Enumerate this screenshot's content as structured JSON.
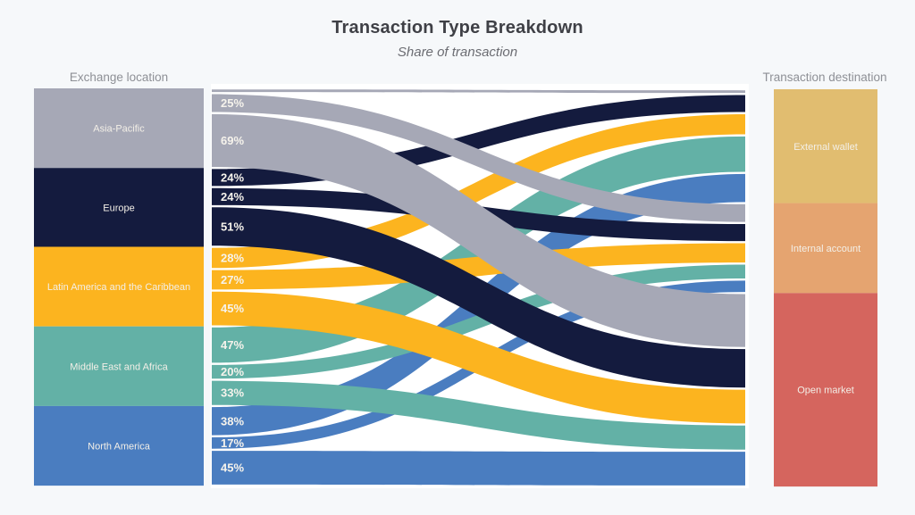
{
  "page": {
    "title": "Transaction Type Breakdown",
    "subtitle": "Share of transaction",
    "left_column_header": "Exchange location",
    "right_column_header": "Transaction destination"
  },
  "colors": {
    "background": "#f6f8fa",
    "plot_background": "#ffffff",
    "title_text": "#3f4046",
    "subtitle_text": "#6b6c72",
    "column_header_text": "#8e9096",
    "node_label_text": "#f3efe7",
    "flow_label_text": "#f6f3ec"
  },
  "chart_data": {
    "type": "sankey",
    "title": "Transaction Type Breakdown",
    "subtitle": "Share of transaction",
    "left_header": "Exchange location",
    "right_header": "Transaction destination",
    "legend_position": "none",
    "value_format": "percent",
    "sources": [
      {
        "name": "Asia-Pacific",
        "color": "#a6a8b6"
      },
      {
        "name": "Europe",
        "color": "#141b3e"
      },
      {
        "name": "Latin America and the Caribbean",
        "color": "#fcb41f"
      },
      {
        "name": "Middle East and Africa",
        "color": "#63b1a6"
      },
      {
        "name": "North America",
        "color": "#4a7dc0"
      }
    ],
    "destinations": [
      {
        "name": "External wallet",
        "color": "#e1bd70"
      },
      {
        "name": "Internal account",
        "color": "#e5a470"
      },
      {
        "name": "Open market",
        "color": "#d5655e"
      }
    ],
    "links": [
      {
        "source": "Asia-Pacific",
        "destination": "External wallet",
        "value": 6,
        "label": ""
      },
      {
        "source": "Asia-Pacific",
        "destination": "Internal account",
        "value": 25,
        "label": "25%"
      },
      {
        "source": "Asia-Pacific",
        "destination": "Open market",
        "value": 69,
        "label": "69%"
      },
      {
        "source": "Europe",
        "destination": "External wallet",
        "value": 24,
        "label": "24%"
      },
      {
        "source": "Europe",
        "destination": "Internal account",
        "value": 24,
        "label": "24%"
      },
      {
        "source": "Europe",
        "destination": "Open market",
        "value": 51,
        "label": "51%"
      },
      {
        "source": "Latin America and the Caribbean",
        "destination": "External wallet",
        "value": 28,
        "label": "28%"
      },
      {
        "source": "Latin America and the Caribbean",
        "destination": "Internal account",
        "value": 27,
        "label": "27%"
      },
      {
        "source": "Latin America and the Caribbean",
        "destination": "Open market",
        "value": 45,
        "label": "45%"
      },
      {
        "source": "Middle East and Africa",
        "destination": "External wallet",
        "value": 47,
        "label": "47%"
      },
      {
        "source": "Middle East and Africa",
        "destination": "Internal account",
        "value": 20,
        "label": "20%"
      },
      {
        "source": "Middle East and Africa",
        "destination": "Open market",
        "value": 33,
        "label": "33%"
      },
      {
        "source": "North America",
        "destination": "External wallet",
        "value": 38,
        "label": "38%"
      },
      {
        "source": "North America",
        "destination": "Internal account",
        "value": 17,
        "label": "17%"
      },
      {
        "source": "North America",
        "destination": "Open market",
        "value": 45,
        "label": "45%"
      }
    ]
  }
}
